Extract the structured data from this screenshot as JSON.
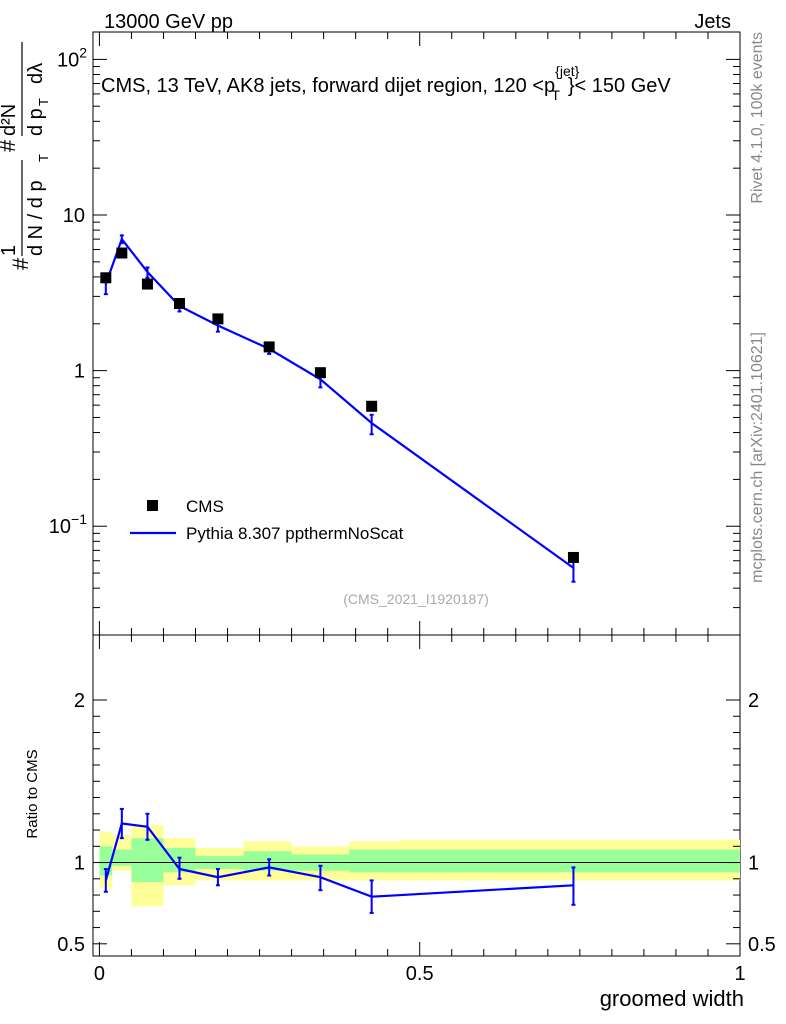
{
  "header": {
    "left": "13000 GeV pp",
    "right": "Jets"
  },
  "side_labels": {
    "rivet": "Rivet 4.1.0,  100k events",
    "mcplots": "mcplots.cern.ch [arXiv:2401.10621]"
  },
  "chart_data": [
    {
      "type": "line",
      "scale": "log",
      "title": "CMS, 13 TeV, AK8 jets, forward dijet region, 120 <",
      "title_sym": "p",
      "title_sup": "{jet}",
      "title_sub": "T",
      "title_end": "}< 150 GeV",
      "ylabel": "1/N dN/dp_T d^2N/dp_T dλ",
      "ylim": [
        0.02,
        150
      ],
      "yticks": [
        {
          "value": 100,
          "base": "10",
          "exp": "2"
        },
        {
          "value": 10,
          "label": "10"
        },
        {
          "value": 1,
          "label": "1"
        },
        {
          "value": 0.1,
          "base": "10",
          "exp": "−1"
        }
      ],
      "watermark": "(CMS_2021_I1920187)",
      "legend": {
        "placement": "middle-left",
        "entries": [
          "CMS",
          "Pythia 8.307 ppthermNoScat"
        ]
      },
      "x": [
        0.01,
        0.035,
        0.075,
        0.125,
        0.185,
        0.265,
        0.345,
        0.425,
        0.74
      ],
      "series": [
        {
          "name": "CMS",
          "style": "marker",
          "values": [
            3.95,
            5.7,
            3.6,
            2.7,
            2.15,
            1.42,
            0.97,
            0.59,
            0.063
          ]
        },
        {
          "name": "Pythia 8.307 ppthermNoScat",
          "style": "line",
          "color": "#0000ff",
          "values": [
            3.6,
            7.0,
            4.3,
            2.6,
            1.95,
            1.38,
            0.88,
            0.46,
            0.054
          ],
          "err_lo": [
            3.1,
            6.6,
            3.95,
            2.4,
            1.78,
            1.28,
            0.78,
            0.39,
            0.044
          ],
          "err_hi": [
            4.1,
            7.4,
            4.6,
            2.8,
            2.1,
            1.48,
            0.98,
            0.52,
            0.064
          ]
        }
      ]
    },
    {
      "type": "line",
      "ylabel": "Ratio to CMS",
      "xlabel": "groomed width",
      "xlim": [
        -0.01,
        1.0
      ],
      "ylim": [
        0.425,
        2.4
      ],
      "yticks": [
        {
          "value": 2,
          "label": "2"
        },
        {
          "value": 1,
          "label": "1"
        },
        {
          "value": 0.5,
          "label": "0.5"
        }
      ],
      "xticks": [
        {
          "value": 0,
          "label": "0"
        },
        {
          "value": 0.5,
          "label": "0.5"
        },
        {
          "value": 1,
          "label": "1"
        }
      ],
      "bins": [
        0,
        0.02,
        0.05,
        0.1,
        0.15,
        0.225,
        0.3,
        0.39,
        0.47,
        1.0
      ],
      "band_outer": [
        [
          0.84,
          1.19
        ],
        [
          0.95,
          1.17
        ],
        [
          0.73,
          1.23
        ],
        [
          0.86,
          1.15
        ],
        [
          0.89,
          1.09
        ],
        [
          0.89,
          1.13
        ],
        [
          0.89,
          1.1
        ],
        [
          0.89,
          1.13
        ],
        [
          0.89,
          1.14
        ]
      ],
      "band_inner": [
        [
          0.92,
          1.1
        ],
        [
          0.98,
          1.08
        ],
        [
          0.88,
          1.15
        ],
        [
          0.94,
          1.09
        ],
        [
          0.96,
          1.04
        ],
        [
          0.95,
          1.07
        ],
        [
          0.95,
          1.05
        ],
        [
          0.94,
          1.08
        ],
        [
          0.94,
          1.08
        ]
      ],
      "ref_line": 1.0,
      "series": [
        {
          "name": "Pythia 8.307 ppthermNoScat",
          "color": "#0000ff",
          "x": [
            0.01,
            0.035,
            0.075,
            0.125,
            0.185,
            0.265,
            0.345,
            0.425,
            0.74
          ],
          "values": [
            0.89,
            1.24,
            1.22,
            0.96,
            0.91,
            0.97,
            0.91,
            0.79,
            0.86
          ],
          "err_lo": [
            0.82,
            1.15,
            1.14,
            0.9,
            0.86,
            0.92,
            0.83,
            0.69,
            0.74
          ],
          "err_hi": [
            0.96,
            1.33,
            1.3,
            1.03,
            0.96,
            1.02,
            0.98,
            0.89,
            0.97
          ]
        }
      ]
    }
  ]
}
